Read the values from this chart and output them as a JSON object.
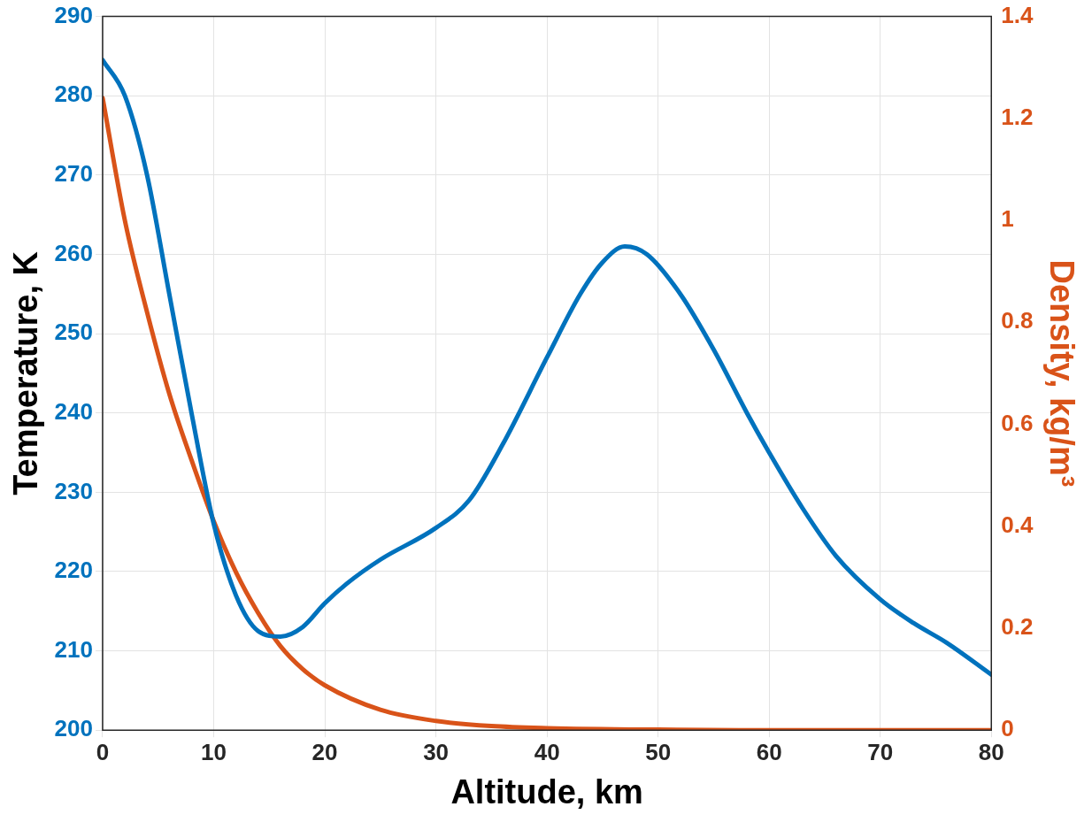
{
  "chart_data": {
    "type": "line",
    "xlabel": "Altitude, km",
    "ylabel": "Temperature, K",
    "y2label": "Density, kg/m³",
    "xlim": [
      0,
      80
    ],
    "xticks": [
      0,
      10,
      20,
      30,
      40,
      50,
      60,
      70,
      80
    ],
    "ylim": [
      200,
      290
    ],
    "yticks": [
      200,
      210,
      220,
      230,
      240,
      250,
      260,
      270,
      280,
      290
    ],
    "y2lim": [
      0,
      1.4
    ],
    "y2ticks": [
      0,
      0.2,
      0.4,
      0.6,
      0.8,
      1,
      1.2,
      1.4
    ],
    "grid": true,
    "legend": false,
    "line_style": "solid",
    "marker": "none",
    "series": [
      {
        "color": "#0072bd",
        "x": [
          0,
          2,
          4,
          6,
          8,
          10,
          12,
          14,
          16,
          18,
          20,
          22,
          25,
          30,
          33,
          36,
          40,
          43,
          45,
          47,
          49,
          52,
          55,
          58,
          60,
          63,
          66,
          70,
          73,
          76,
          80
        ],
        "values": [
          284.5,
          280,
          270,
          255,
          240,
          226,
          217,
          212.5,
          211.8,
          213,
          216,
          218.5,
          221.5,
          225.5,
          229,
          236,
          247,
          255,
          259,
          261,
          260,
          255,
          248,
          240,
          235,
          228,
          222,
          216.5,
          213.5,
          211,
          207
        ]
      },
      {
        "color": "#d95319",
        "axis": "y2",
        "x": [
          0,
          2,
          4,
          6,
          8,
          10,
          12,
          14,
          16,
          18,
          20,
          25,
          30,
          35,
          40,
          50,
          60,
          70,
          80
        ],
        "values": [
          1.24,
          1.0,
          0.82,
          0.66,
          0.53,
          0.41,
          0.31,
          0.23,
          0.165,
          0.12,
          0.088,
          0.04,
          0.018,
          0.008,
          0.004,
          0.001,
          0,
          0,
          0
        ]
      }
    ]
  }
}
